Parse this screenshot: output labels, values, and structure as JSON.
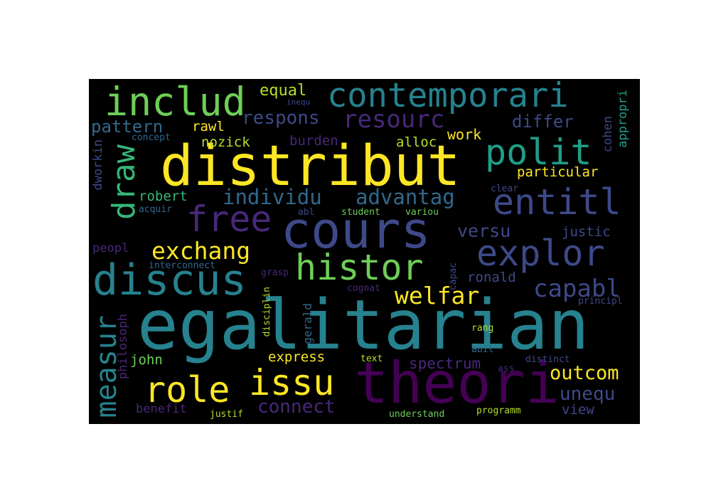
{
  "colors": {
    "background": "#000000",
    "page": "#ffffff",
    "yellow": "#fde725",
    "lime": "#b5de2b",
    "green": "#6ece58",
    "teal_green": "#35b779",
    "teal": "#1f9e89",
    "cyan": "#26828e",
    "blue": "#31688e",
    "indigo": "#3e4989",
    "purple": "#482878",
    "dark_purple": "#440154"
  },
  "words": [
    {
      "text": "egalitarian",
      "color": "#26828e"
    },
    {
      "text": "distribut",
      "color": "#fde725"
    },
    {
      "text": "theori",
      "color": "#440154"
    },
    {
      "text": "cours",
      "color": "#3e4989"
    },
    {
      "text": "discus",
      "color": "#26828e"
    },
    {
      "text": "contemporari",
      "color": "#26828e"
    },
    {
      "text": "includ",
      "color": "#6ece58"
    },
    {
      "text": "polit",
      "color": "#1f9e89"
    },
    {
      "text": "histor",
      "color": "#6ece58"
    },
    {
      "text": "explor",
      "color": "#3e4989"
    },
    {
      "text": "entitl",
      "color": "#3e4989"
    },
    {
      "text": "free",
      "color": "#482878"
    },
    {
      "text": "issu",
      "color": "#fde725"
    },
    {
      "text": "role",
      "color": "#fde725"
    },
    {
      "text": "draw",
      "color": "#35b779"
    },
    {
      "text": "measur",
      "color": "#26828e"
    },
    {
      "text": "capabl",
      "color": "#3e4989"
    },
    {
      "text": "exchang",
      "color": "#fde725"
    },
    {
      "text": "welfar",
      "color": "#fde725"
    },
    {
      "text": "outcom",
      "color": "#fde725"
    },
    {
      "text": "individu",
      "color": "#31688e"
    },
    {
      "text": "advantag",
      "color": "#31688e"
    },
    {
      "text": "resourc",
      "color": "#482878"
    },
    {
      "text": "respons",
      "color": "#3e4989"
    },
    {
      "text": "connect",
      "color": "#482878"
    },
    {
      "text": "unequ",
      "color": "#3e4989"
    },
    {
      "text": "versu",
      "color": "#3e4989"
    },
    {
      "text": "pattern",
      "color": "#31688e"
    },
    {
      "text": "differ",
      "color": "#3e4989"
    },
    {
      "text": "spectrum",
      "color": "#482878"
    },
    {
      "text": "equal",
      "color": "#b5de2b"
    },
    {
      "text": "work",
      "color": "#fde725"
    },
    {
      "text": "particular",
      "color": "#fde725"
    },
    {
      "text": "robert",
      "color": "#35b779"
    },
    {
      "text": "nozick",
      "color": "#b5de2b"
    },
    {
      "text": "rawl",
      "color": "#fde725"
    },
    {
      "text": "burden",
      "color": "#482878"
    },
    {
      "text": "alloc",
      "color": "#b5de2b"
    },
    {
      "text": "express",
      "color": "#fde725"
    },
    {
      "text": "john",
      "color": "#6ece58"
    },
    {
      "text": "justic",
      "color": "#3e4989"
    },
    {
      "text": "ronald",
      "color": "#3e4989"
    },
    {
      "text": "view",
      "color": "#3e4989"
    },
    {
      "text": "benefit",
      "color": "#482878"
    },
    {
      "text": "peopl",
      "color": "#482878"
    },
    {
      "text": "cohen",
      "color": "#3e4989"
    },
    {
      "text": "appropri",
      "color": "#1f9e89"
    },
    {
      "text": "dworkin",
      "color": "#3e4989"
    },
    {
      "text": "philosoph",
      "color": "#482878"
    },
    {
      "text": "gerald",
      "color": "#31688e"
    },
    {
      "text": "disciplin",
      "color": "#b5de2b"
    },
    {
      "text": "concept",
      "color": "#31688e"
    },
    {
      "text": "acquir",
      "color": "#31688e"
    },
    {
      "text": "abl",
      "color": "#3e4989"
    },
    {
      "text": "student",
      "color": "#6ece58"
    },
    {
      "text": "variou",
      "color": "#6ece58"
    },
    {
      "text": "clear",
      "color": "#3e4989"
    },
    {
      "text": "interconnect",
      "color": "#31688e"
    },
    {
      "text": "grasp",
      "color": "#482878"
    },
    {
      "text": "capac",
      "color": "#3e4989"
    },
    {
      "text": "cognat",
      "color": "#482878"
    },
    {
      "text": "principl",
      "color": "#3e4989"
    },
    {
      "text": "rang",
      "color": "#b5de2b"
    },
    {
      "text": "abil",
      "color": "#31688e"
    },
    {
      "text": "distinct",
      "color": "#3e4989"
    },
    {
      "text": "text",
      "color": "#b5de2b"
    },
    {
      "text": "ass",
      "color": "#482878"
    },
    {
      "text": "understand",
      "color": "#6ece58"
    },
    {
      "text": "programm",
      "color": "#b5de2b"
    },
    {
      "text": "justif",
      "color": "#b5de2b"
    },
    {
      "text": "inequ",
      "color": "#3e4989"
    }
  ]
}
